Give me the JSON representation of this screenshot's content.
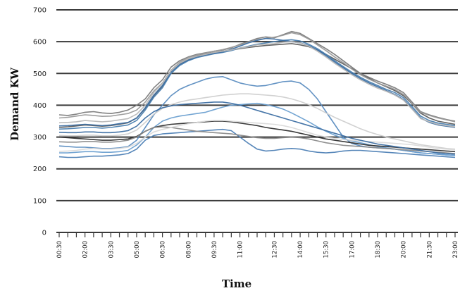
{
  "chart_data": {
    "type": "line",
    "title": "",
    "xlabel": "Time",
    "ylabel": "Demand KW",
    "ylim": [
      0,
      700
    ],
    "yticks": [
      "0",
      "100",
      "200",
      "300",
      "400",
      "500",
      "600",
      "700"
    ],
    "xtick_labels": [
      "00:30",
      "02:00",
      "03:30",
      "05:00",
      "06:30",
      "08:00",
      "09:30",
      "11:00",
      "12:30",
      "14:00",
      "15:30",
      "17:00",
      "18:30",
      "20:00",
      "21:30",
      "23:00"
    ],
    "x": [
      "00:30",
      "01:00",
      "01:30",
      "02:00",
      "02:30",
      "03:00",
      "03:30",
      "04:00",
      "04:30",
      "05:00",
      "05:30",
      "06:00",
      "06:30",
      "07:00",
      "07:30",
      "08:00",
      "08:30",
      "09:00",
      "09:30",
      "10:00",
      "10:30",
      "11:00",
      "11:30",
      "12:00",
      "12:30",
      "13:00",
      "13:30",
      "14:00",
      "14:30",
      "15:00",
      "15:30",
      "16:00",
      "16:30",
      "17:00",
      "17:30",
      "18:00",
      "18:30",
      "19:00",
      "19:30",
      "20:00",
      "20:30",
      "21:00",
      "21:30",
      "22:00",
      "22:30",
      "23:00",
      "23:30"
    ],
    "grid": true,
    "legend": "none",
    "series": [
      {
        "color": "#5b5b5b",
        "values": [
          330,
          332,
          335,
          338,
          336,
          334,
          336,
          340,
          345,
          360,
          390,
          430,
          460,
          505,
          530,
          545,
          555,
          562,
          566,
          570,
          574,
          578,
          582,
          585,
          588,
          590,
          592,
          594,
          590,
          584,
          574,
          560,
          545,
          530,
          515,
          500,
          485,
          470,
          458,
          446,
          430,
          405,
          375,
          360,
          350,
          345,
          340
        ]
      },
      {
        "color": "#7a7a7a",
        "values": [
          370,
          368,
          372,
          378,
          380,
          376,
          374,
          378,
          385,
          400,
          420,
          455,
          480,
          520,
          540,
          552,
          560,
          565,
          570,
          574,
          580,
          592,
          600,
          610,
          615,
          612,
          622,
          632,
          626,
          610,
          594,
          578,
          560,
          540,
          520,
          500,
          488,
          476,
          466,
          455,
          440,
          410,
          380,
          370,
          362,
          355,
          350
        ]
      },
      {
        "color": "#9a9a9a",
        "values": [
          360,
          362,
          366,
          370,
          368,
          365,
          366,
          370,
          374,
          385,
          410,
          445,
          470,
          510,
          535,
          550,
          558,
          564,
          570,
          575,
          582,
          590,
          598,
          606,
          610,
          614,
          620,
          628,
          622,
          608,
          590,
          572,
          552,
          534,
          514,
          496,
          482,
          470,
          460,
          450,
          434,
          406,
          378,
          368,
          360,
          354,
          348
        ]
      },
      {
        "color": "#4a7fb0",
        "values": [
          325,
          326,
          328,
          330,
          330,
          328,
          330,
          334,
          338,
          352,
          385,
          425,
          455,
          500,
          525,
          540,
          550,
          556,
          562,
          566,
          572,
          580,
          586,
          592,
          596,
          600,
          604,
          606,
          602,
          592,
          578,
          560,
          540,
          522,
          504,
          488,
          474,
          462,
          450,
          440,
          424,
          396,
          366,
          352,
          344,
          340,
          336
        ]
      },
      {
        "color": "#3d6fa3",
        "values": [
          335,
          336,
          338,
          340,
          338,
          336,
          338,
          342,
          346,
          360,
          392,
          432,
          462,
          505,
          528,
          542,
          552,
          558,
          563,
          568,
          576,
          586,
          596,
          604,
          610,
          608,
          604,
          600,
          596,
          588,
          574,
          556,
          536,
          518,
          500,
          484,
          470,
          458,
          446,
          434,
          418,
          390,
          360,
          346,
          338,
          334,
          330
        ]
      },
      {
        "color": "#b8b8b8",
        "values": [
          345,
          346,
          348,
          352,
          350,
          348,
          350,
          354,
          358,
          372,
          400,
          440,
          468,
          508,
          532,
          546,
          554,
          560,
          566,
          570,
          574,
          580,
          584,
          590,
          592,
          594,
          598,
          600,
          596,
          586,
          570,
          552,
          532,
          514,
          496,
          480,
          466,
          454,
          444,
          432,
          416,
          388,
          358,
          348,
          340,
          336,
          332
        ]
      },
      {
        "color": "#5a8cc0",
        "values": [
          272,
          270,
          268,
          268,
          266,
          264,
          264,
          266,
          270,
          290,
          330,
          370,
          400,
          430,
          450,
          462,
          472,
          482,
          488,
          490,
          480,
          470,
          464,
          460,
          462,
          468,
          474,
          476,
          470,
          450,
          420,
          380,
          340,
          300,
          280,
          272,
          268,
          266,
          264,
          262,
          258,
          254,
          250,
          248,
          246,
          244,
          242
        ]
      },
      {
        "color": "#6a9fd0",
        "values": [
          250,
          250,
          252,
          254,
          254,
          252,
          252,
          254,
          258,
          275,
          300,
          330,
          350,
          360,
          366,
          370,
          374,
          378,
          386,
          394,
          400,
          402,
          404,
          406,
          402,
          396,
          388,
          376,
          362,
          348,
          332,
          318,
          306,
          296,
          288,
          282,
          276,
          270,
          266,
          262,
          258,
          254,
          250,
          248,
          246,
          244,
          242
        ]
      },
      {
        "color": "#2f2f2f",
        "values": [
          300,
          298,
          296,
          294,
          292,
          290,
          290,
          292,
          294,
          302,
          318,
          330,
          336,
          340,
          342,
          344,
          346,
          348,
          350,
          350,
          348,
          344,
          340,
          336,
          330,
          326,
          322,
          318,
          312,
          306,
          300,
          294,
          290,
          286,
          282,
          278,
          274,
          272,
          270,
          268,
          266,
          264,
          262,
          260,
          258,
          256,
          254
        ]
      },
      {
        "color": "#4d7fb5",
        "values": [
          238,
          236,
          236,
          238,
          240,
          240,
          242,
          244,
          248,
          262,
          290,
          305,
          310,
          312,
          314,
          316,
          318,
          320,
          322,
          324,
          320,
          300,
          280,
          262,
          256,
          258,
          262,
          264,
          262,
          256,
          252,
          250,
          252,
          256,
          258,
          258,
          256,
          254,
          252,
          250,
          248,
          246,
          244,
          242,
          240,
          238,
          236
        ]
      },
      {
        "color": "#cfcfcf",
        "values": [
          305,
          304,
          304,
          306,
          306,
          304,
          304,
          306,
          310,
          322,
          346,
          372,
          390,
          402,
          410,
          416,
          420,
          424,
          428,
          432,
          434,
          436,
          436,
          434,
          432,
          430,
          426,
          420,
          412,
          402,
          390,
          376,
          362,
          350,
          338,
          326,
          316,
          308,
          300,
          294,
          288,
          282,
          276,
          272,
          268,
          264,
          262
        ]
      },
      {
        "color": "#8a8a8a",
        "values": [
          285,
          284,
          284,
          286,
          286,
          284,
          284,
          286,
          290,
          300,
          318,
          330,
          332,
          330,
          326,
          322,
          318,
          316,
          314,
          312,
          310,
          306,
          302,
          298,
          296,
          296,
          298,
          300,
          298,
          294,
          288,
          282,
          278,
          274,
          272,
          270,
          268,
          266,
          264,
          262,
          260,
          258,
          256,
          254,
          252,
          250,
          248
        ]
      },
      {
        "color": "#dadada",
        "values": [
          255,
          256,
          258,
          262,
          264,
          262,
          262,
          264,
          268,
          280,
          300,
          316,
          324,
          330,
          336,
          342,
          346,
          350,
          352,
          352,
          350,
          348,
          346,
          344,
          342,
          340,
          336,
          330,
          322,
          314,
          306,
          300,
          296,
          292,
          290,
          288,
          286,
          284,
          282,
          280,
          278,
          276,
          272,
          268,
          264,
          262,
          260
        ]
      },
      {
        "color": "#3d6fa3",
        "values": [
          315,
          314,
          314,
          316,
          316,
          314,
          314,
          316,
          320,
          334,
          360,
          380,
          392,
          398,
          402,
          404,
          406,
          408,
          410,
          410,
          406,
          400,
          392,
          384,
          376,
          368,
          360,
          352,
          344,
          336,
          328,
          320,
          312,
          304,
          296,
          290,
          284,
          278,
          274,
          270,
          266,
          262,
          258,
          254,
          250,
          248,
          246
        ]
      }
    ]
  }
}
